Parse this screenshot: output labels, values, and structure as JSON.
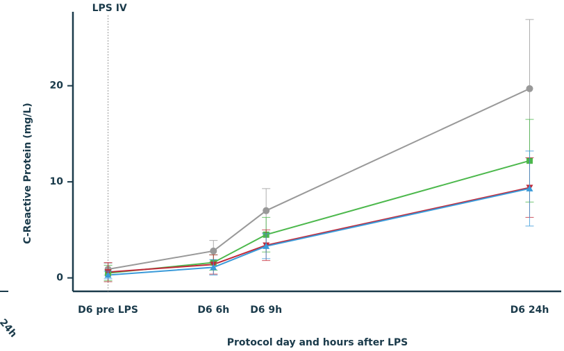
{
  "chart_data": {
    "type": "line",
    "x_label": "Protocol day and hours after LPS",
    "y_label": "C-Reactive Protein (mg/L)",
    "annotation": "LPS IV",
    "annotation_x": 0,
    "cut_text": "24h",
    "x": [
      0,
      6,
      9,
      24
    ],
    "xlim": [
      -2,
      25.8
    ],
    "xticks": [
      {
        "value": 0,
        "label": "D6 pre LPS"
      },
      {
        "value": 6,
        "label": "D6 6h"
      },
      {
        "value": 9,
        "label": "D6 9h"
      },
      {
        "value": 24,
        "label": "D6 24h"
      }
    ],
    "ylim": [
      -1.4,
      27.7
    ],
    "yticks": [
      0,
      10,
      20
    ],
    "grid": false,
    "series": [
      {
        "color": "#999999",
        "marker": "circle",
        "values": [
          0.9,
          2.8,
          7.0,
          19.7
        ],
        "errors": [
          0.6,
          1.1,
          2.3,
          7.2
        ]
      },
      {
        "color": "#4cb84c",
        "marker": "square",
        "values": [
          0.5,
          1.6,
          4.5,
          12.2
        ],
        "errors": [
          0.8,
          0.8,
          1.8,
          4.3
        ]
      },
      {
        "color": "#c0293a",
        "marker": "triangle-down",
        "values": [
          0.6,
          1.4,
          3.4,
          9.4
        ],
        "errors": [
          1.0,
          1.0,
          1.6,
          3.1
        ]
      },
      {
        "color": "#3a9ad9",
        "marker": "triangle-up",
        "values": [
          0.3,
          1.1,
          3.3,
          9.3
        ],
        "errors": [
          0.4,
          0.8,
          1.3,
          3.9
        ]
      }
    ]
  }
}
